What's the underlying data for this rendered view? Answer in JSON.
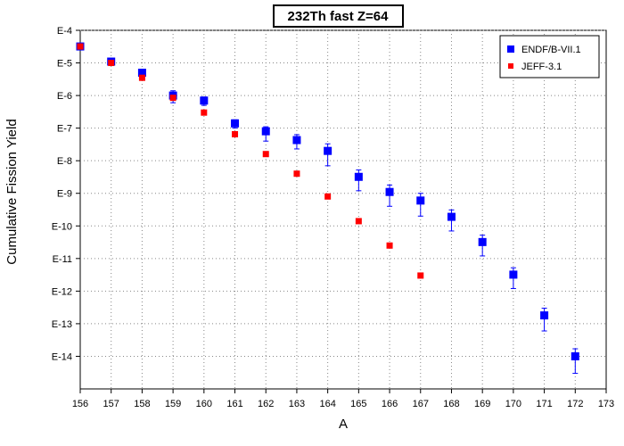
{
  "chart_data": {
    "type": "scatter",
    "title": "232Th fast Z=64",
    "xlabel": "A",
    "ylabel": "Cumulative Fission Yield",
    "xlim": [
      156,
      173
    ],
    "ylim": [
      1e-15,
      0.0001
    ],
    "y_scale": "log",
    "grid": true,
    "legend_position": "top-right",
    "x_ticks": [
      "156",
      "157",
      "158",
      "159",
      "160",
      "161",
      "162",
      "163",
      "164",
      "165",
      "166",
      "167",
      "168",
      "169",
      "170",
      "171",
      "172",
      "173"
    ],
    "y_ticks": [
      "E-4",
      "E-5",
      "E-6",
      "E-7",
      "E-8",
      "E-9",
      "E-10",
      "E-11",
      "E-12",
      "E-13",
      "E-14"
    ],
    "series": [
      {
        "name": "ENDF/B-VII.1",
        "color": "#0000ff",
        "marker": "square",
        "x": [
          156,
          157,
          158,
          159,
          160,
          161,
          162,
          163,
          164,
          165,
          166,
          167,
          168,
          169,
          170,
          171,
          172
        ],
        "y": [
          3.2e-05,
          1.1e-05,
          5e-06,
          1e-06,
          7e-07,
          1.4e-07,
          8e-08,
          4.3e-08,
          2e-08,
          3.2e-09,
          1.1e-09,
          6e-10,
          1.9e-10,
          3.2e-11,
          3.2e-12,
          1.8e-13,
          1e-14
        ],
        "y_err_low": [
          4e-06,
          1.5e-06,
          8e-07,
          4e-07,
          2e-07,
          4e-08,
          4e-08,
          2e-08,
          1.3e-08,
          2e-09,
          7e-10,
          4e-10,
          1.2e-10,
          2e-11,
          2e-12,
          1.2e-13,
          7e-15
        ],
        "y_err_high": [
          4e-06,
          1.5e-06,
          8e-07,
          4e-07,
          2e-07,
          4e-08,
          3e-08,
          2e-08,
          1.3e-08,
          2e-09,
          7e-10,
          4e-10,
          1.2e-10,
          2e-11,
          2e-12,
          1.2e-13,
          7e-15
        ]
      },
      {
        "name": "JEFF-3.1",
        "color": "#ff0000",
        "marker": "square",
        "x": [
          156,
          157,
          158,
          159,
          160,
          161,
          162,
          163,
          164,
          165,
          166,
          167
        ],
        "y": [
          3.2e-05,
          1e-05,
          3.5e-06,
          8.5e-07,
          3e-07,
          6.5e-08,
          1.6e-08,
          4e-09,
          8e-10,
          1.4e-10,
          2.5e-11,
          3e-12
        ]
      }
    ]
  }
}
